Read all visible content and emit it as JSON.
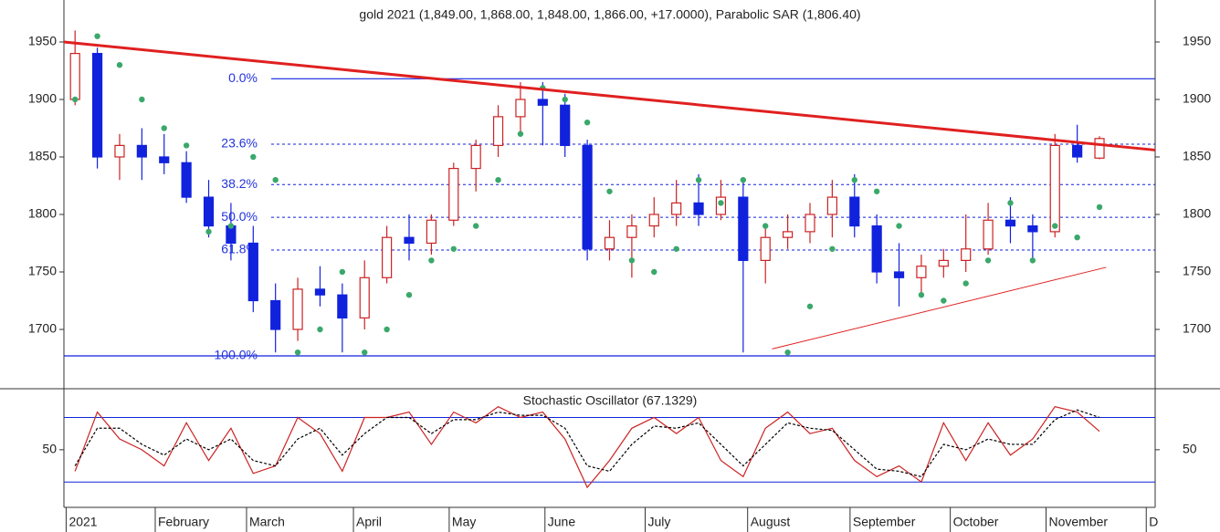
{
  "chart_data": [
    {
      "type": "candlestick",
      "title": "gold 2021 (1,849.00, 1,868.00, 1,848.00, 1,866.00, +17.0000), Parabolic SAR (1,806.40)",
      "categories": [
        null,
        null,
        null,
        null,
        null,
        null,
        null,
        null,
        null,
        null,
        null,
        null,
        null,
        null,
        null,
        null,
        null,
        null,
        null,
        null,
        null,
        null,
        null,
        null,
        null,
        null,
        null,
        null,
        null,
        null,
        null,
        null,
        null,
        null,
        null,
        null,
        null,
        null,
        null,
        null,
        null,
        null,
        null,
        null,
        null,
        null,
        null
      ],
      "open": [
        1900,
        1940,
        1850,
        1860,
        1850,
        1845,
        1815,
        1790,
        1775,
        1725,
        1700,
        1735,
        1730,
        1710,
        1745,
        1780,
        1775,
        1795,
        1840,
        1860,
        1885,
        1900,
        1895,
        1860,
        1770,
        1780,
        1790,
        1800,
        1810,
        1800,
        1815,
        1760,
        1780,
        1785,
        1800,
        1815,
        1790,
        1750,
        1745,
        1755,
        1760,
        1770,
        1795,
        1790,
        1785,
        1860,
        1849
      ],
      "high": [
        1960,
        1945,
        1870,
        1875,
        1870,
        1855,
        1830,
        1810,
        1790,
        1740,
        1745,
        1755,
        1740,
        1760,
        1790,
        1800,
        1800,
        1845,
        1865,
        1895,
        1915,
        1915,
        1905,
        1865,
        1795,
        1800,
        1815,
        1830,
        1835,
        1830,
        1830,
        1790,
        1800,
        1810,
        1830,
        1835,
        1800,
        1775,
        1765,
        1770,
        1800,
        1810,
        1815,
        1800,
        1870,
        1878,
        1868
      ],
      "low": [
        1895,
        1840,
        1830,
        1830,
        1835,
        1810,
        1780,
        1760,
        1715,
        1680,
        1690,
        1720,
        1680,
        1700,
        1740,
        1760,
        1765,
        1790,
        1820,
        1850,
        1870,
        1860,
        1850,
        1760,
        1760,
        1745,
        1780,
        1790,
        1790,
        1795,
        1680,
        1740,
        1770,
        1775,
        1780,
        1780,
        1740,
        1720,
        1730,
        1745,
        1750,
        1765,
        1775,
        1760,
        1780,
        1845,
        1848
      ],
      "close": [
        1940,
        1850,
        1860,
        1850,
        1845,
        1815,
        1790,
        1775,
        1725,
        1700,
        1735,
        1730,
        1710,
        1745,
        1780,
        1775,
        1795,
        1840,
        1860,
        1885,
        1900,
        1895,
        1860,
        1770,
        1780,
        1790,
        1800,
        1810,
        1800,
        1815,
        1760,
        1780,
        1785,
        1800,
        1815,
        1790,
        1750,
        1745,
        1755,
        1760,
        1770,
        1795,
        1790,
        1785,
        1860,
        1850,
        1866
      ],
      "up_color": "#cc2222",
      "down_color": "#1122dd",
      "sar": {
        "color": "#3aa86a",
        "values": [
          1900,
          1955,
          1930,
          1900,
          1875,
          1860,
          1785,
          1790,
          1850,
          1830,
          1680,
          1700,
          1750,
          1680,
          1700,
          1730,
          1760,
          1770,
          1790,
          1830,
          1870,
          1910,
          1900,
          1880,
          1820,
          1760,
          1750,
          1770,
          1830,
          1810,
          1830,
          1790,
          1680,
          1720,
          1770,
          1830,
          1820,
          1790,
          1730,
          1725,
          1740,
          1760,
          1810,
          1760,
          1790,
          1780,
          1806.4
        ]
      },
      "fibonacci": {
        "high": 1918,
        "low": 1677,
        "color": "#1122dd",
        "levels": [
          {
            "value": 0,
            "label": "0.0%"
          },
          {
            "value": 23.6,
            "label": "23.6%"
          },
          {
            "value": 38.2,
            "label": "38.2%"
          },
          {
            "value": 50,
            "label": "50.0%"
          },
          {
            "value": 61.8,
            "label": "61.8%"
          },
          {
            "value": 100,
            "label": "100.0%"
          }
        ]
      },
      "trendlines": [
        {
          "color": "#e02020",
          "width": 3,
          "x": [
            -0.5,
            48.5
          ],
          "y": [
            1950,
            1856
          ]
        },
        {
          "color": "#e02020",
          "width": 1,
          "x": [
            31.3,
            46.3
          ],
          "y": [
            1683,
            1754
          ]
        }
      ],
      "xlim": [
        -0.5,
        48.5
      ],
      "ylim": [
        1649.2,
        1986.5
      ],
      "yticks": [
        1700,
        1750,
        1800,
        1850,
        1900,
        1950
      ]
    },
    {
      "type": "line",
      "title": "Stochastic Oscillator (67.1329)",
      "series": [
        {
          "color": "#cc2222",
          "dash": false,
          "values": [
            30,
            85,
            60,
            50,
            35,
            75,
            40,
            70,
            28,
            35,
            80,
            65,
            30,
            80,
            80,
            85,
            55,
            85,
            75,
            90,
            80,
            85,
            60,
            15,
            40,
            70,
            80,
            65,
            80,
            40,
            25,
            70,
            85,
            65,
            70,
            40,
            25,
            35,
            20,
            75,
            40,
            75,
            45,
            60,
            90,
            85,
            67.1329
          ]
        },
        {
          "color": "#000000",
          "dash": true,
          "values": [
            35,
            70,
            70,
            55,
            45,
            60,
            50,
            60,
            40,
            35,
            60,
            70,
            45,
            65,
            80,
            80,
            65,
            78,
            78,
            85,
            82,
            82,
            70,
            35,
            30,
            55,
            72,
            70,
            75,
            55,
            35,
            55,
            75,
            70,
            68,
            50,
            32,
            30,
            25,
            55,
            50,
            60,
            55,
            55,
            78,
            87,
            80
          ]
        }
      ],
      "hlines": [
        20,
        80
      ],
      "xlim": [
        -0.5,
        48.5
      ],
      "ylim": [
        -1,
        105
      ],
      "yticks": [
        50
      ],
      "xticks": [
        {
          "value": -0.4,
          "label": "2021"
        },
        {
          "value": 3.6,
          "label": "February"
        },
        {
          "value": 7.7,
          "label": "March"
        },
        {
          "value": 12.5,
          "label": "April"
        },
        {
          "value": 16.8,
          "label": "May"
        },
        {
          "value": 21.1,
          "label": "June"
        },
        {
          "value": 25.6,
          "label": "July"
        },
        {
          "value": 30.2,
          "label": "August"
        },
        {
          "value": 34.8,
          "label": "September"
        },
        {
          "value": 39.3,
          "label": "October"
        },
        {
          "value": 43.6,
          "label": "November"
        },
        {
          "value": 48.1,
          "label": "D"
        }
      ]
    }
  ]
}
